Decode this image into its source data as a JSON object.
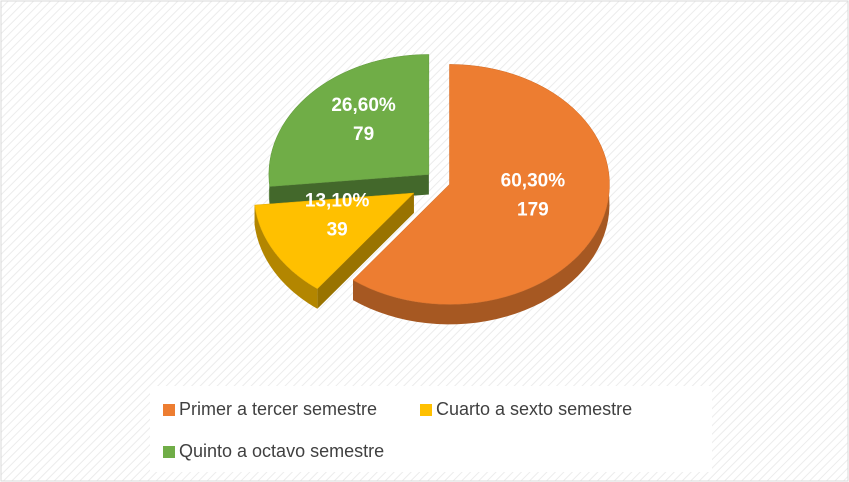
{
  "chart_data": {
    "type": "pie",
    "categories": [
      "Primer a tercer semestre",
      "Cuarto a sexto semestre",
      "Quinto a octavo semestre"
    ],
    "values": [
      60.3,
      13.1,
      26.6
    ],
    "value_labels": [
      "60,30%",
      "13,10%",
      "26,60%"
    ],
    "counts": [
      179,
      39,
      79
    ],
    "colors": [
      "#ed7d31",
      "#ffc000",
      "#70ad47"
    ],
    "legend": "bottom"
  }
}
